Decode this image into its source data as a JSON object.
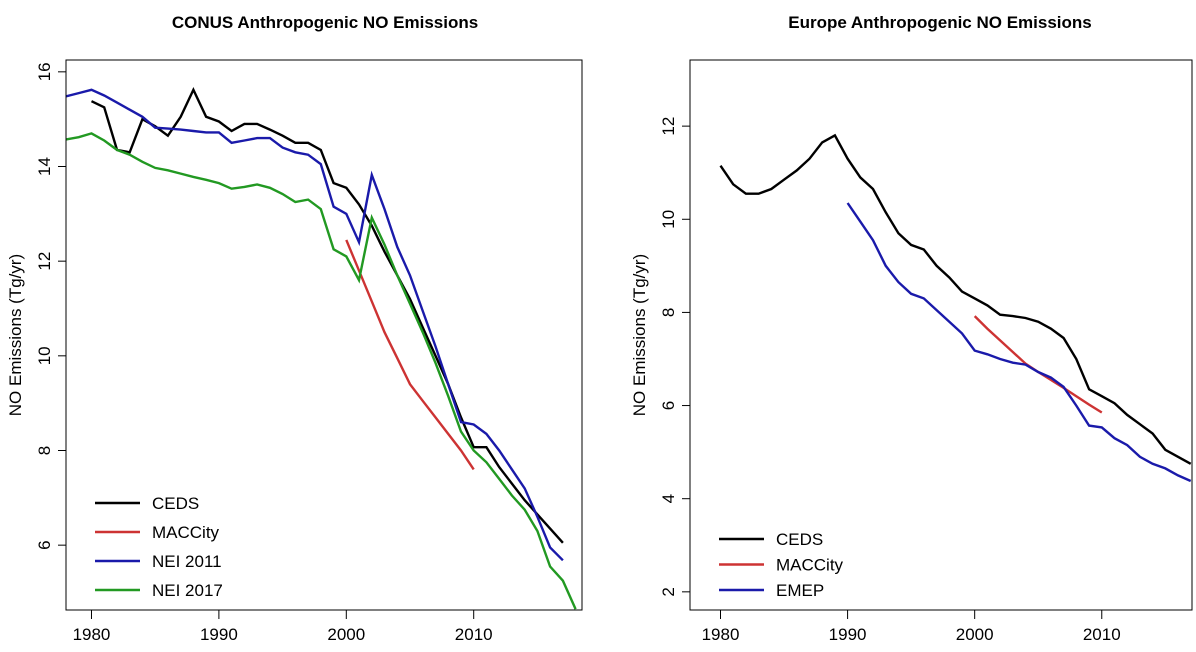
{
  "chart_data": [
    {
      "type": "line",
      "title": "CONUS Anthropogenic NO Emissions",
      "y_label": "NO Emissions (Tg/yr)",
      "xlim": [
        1978,
        2018.5
      ],
      "ylim": [
        4.63,
        16.25
      ],
      "xticks": [
        1980,
        1990,
        2000,
        2010
      ],
      "yticks": [
        6,
        8,
        10,
        12,
        14,
        16
      ],
      "legend": "bottom-left",
      "series": [
        {
          "name": "CEDS",
          "color": "#000000",
          "x": [
            1980,
            1981,
            1982,
            1983,
            1984,
            1985,
            1986,
            1987,
            1988,
            1989,
            1990,
            1991,
            1992,
            1993,
            1994,
            1995,
            1996,
            1997,
            1998,
            1999,
            2000,
            2001,
            2002,
            2003,
            2004,
            2005,
            2006,
            2007,
            2008,
            2009,
            2010,
            2011,
            2012,
            2013,
            2014,
            2015,
            2016,
            2017
          ],
          "values": [
            15.38,
            15.25,
            14.35,
            14.3,
            15.0,
            14.85,
            14.65,
            15.05,
            15.62,
            15.05,
            14.95,
            14.75,
            14.9,
            14.9,
            14.78,
            14.65,
            14.5,
            14.5,
            14.35,
            13.65,
            13.55,
            13.2,
            12.75,
            12.2,
            11.7,
            11.2,
            10.6,
            10.0,
            9.4,
            8.7,
            8.07,
            8.07,
            7.65,
            7.3,
            6.95,
            6.65,
            6.35,
            6.05
          ]
        },
        {
          "name": "MACCity",
          "color": "#cd3333",
          "x": [
            2000,
            2001,
            2002,
            2003,
            2004,
            2005,
            2006,
            2007,
            2008,
            2009,
            2010
          ],
          "values": [
            12.45,
            11.8,
            11.15,
            10.5,
            9.95,
            9.4,
            9.05,
            8.7,
            8.35,
            8.0,
            7.6
          ]
        },
        {
          "name": "NEI 2011",
          "color": "#1a1aaa",
          "x": [
            1978,
            1979,
            1980,
            1981,
            1982,
            1983,
            1984,
            1985,
            1986,
            1987,
            1988,
            1989,
            1990,
            1991,
            1992,
            1993,
            1994,
            1995,
            1996,
            1997,
            1998,
            1999,
            2000,
            2001,
            2002,
            2003,
            2004,
            2005,
            2006,
            2007,
            2008,
            2009,
            2010,
            2011,
            2012,
            2013,
            2014,
            2015,
            2016,
            2017
          ],
          "values": [
            15.48,
            15.55,
            15.62,
            15.5,
            15.35,
            15.2,
            15.05,
            14.82,
            14.8,
            14.78,
            14.75,
            14.72,
            14.72,
            14.5,
            14.55,
            14.6,
            14.6,
            14.4,
            14.3,
            14.25,
            14.05,
            13.15,
            13.0,
            12.4,
            13.82,
            13.1,
            12.3,
            11.7,
            10.95,
            10.2,
            9.4,
            8.6,
            8.55,
            8.35,
            8.0,
            7.6,
            7.2,
            6.6,
            5.95,
            5.68
          ]
        },
        {
          "name": "NEI 2017",
          "color": "#229922",
          "x": [
            1978,
            1979,
            1980,
            1981,
            1982,
            1983,
            1984,
            1985,
            1986,
            1987,
            1988,
            1989,
            1990,
            1991,
            1992,
            1993,
            1994,
            1995,
            1996,
            1997,
            1998,
            1999,
            2000,
            2001,
            2002,
            2003,
            2004,
            2005,
            2006,
            2007,
            2008,
            2009,
            2010,
            2011,
            2012,
            2013,
            2014,
            2015,
            2016,
            2017,
            2018
          ],
          "values": [
            14.57,
            14.62,
            14.7,
            14.55,
            14.35,
            14.25,
            14.1,
            13.97,
            13.92,
            13.85,
            13.78,
            13.72,
            13.65,
            13.53,
            13.57,
            13.62,
            13.55,
            13.42,
            13.25,
            13.3,
            13.1,
            12.25,
            12.1,
            11.6,
            12.92,
            12.35,
            11.7,
            11.1,
            10.5,
            9.85,
            9.15,
            8.4,
            8.0,
            7.75,
            7.4,
            7.05,
            6.75,
            6.3,
            5.55,
            5.25,
            4.65
          ]
        }
      ]
    },
    {
      "type": "line",
      "title": "Europe Anthropogenic NO Emissions",
      "y_label": "NO Emissions (Tg/yr)",
      "xlim": [
        1977.6,
        2017.1
      ],
      "ylim": [
        1.61,
        13.42
      ],
      "xticks": [
        1980,
        1990,
        2000,
        2010
      ],
      "yticks": [
        2,
        4,
        6,
        8,
        10,
        12
      ],
      "legend": "bottom-left",
      "series": [
        {
          "name": "CEDS",
          "color": "#000000",
          "x": [
            1980,
            1981,
            1982,
            1983,
            1984,
            1985,
            1986,
            1987,
            1988,
            1989,
            1990,
            1991,
            1992,
            1993,
            1994,
            1995,
            1996,
            1997,
            1998,
            1999,
            2000,
            2001,
            2002,
            2003,
            2004,
            2005,
            2006,
            2007,
            2008,
            2009,
            2010,
            2011,
            2012,
            2013,
            2014,
            2015,
            2016,
            2017
          ],
          "values": [
            11.15,
            10.75,
            10.55,
            10.55,
            10.65,
            10.85,
            11.05,
            11.3,
            11.65,
            11.8,
            11.3,
            10.9,
            10.65,
            10.15,
            9.7,
            9.45,
            9.35,
            9.0,
            8.75,
            8.45,
            8.3,
            8.15,
            7.95,
            7.92,
            7.88,
            7.8,
            7.65,
            7.45,
            7.0,
            6.35,
            6.2,
            6.05,
            5.8,
            5.6,
            5.4,
            5.05,
            4.9,
            4.75
          ]
        },
        {
          "name": "MACCity",
          "color": "#cd3333",
          "x": [
            2000,
            2001,
            2002,
            2003,
            2004,
            2005,
            2006,
            2007,
            2008,
            2009,
            2010
          ],
          "values": [
            7.92,
            7.65,
            7.4,
            7.15,
            6.9,
            6.72,
            6.55,
            6.38,
            6.2,
            6.02,
            5.85
          ]
        },
        {
          "name": "EMEP",
          "color": "#1a1aaa",
          "x": [
            1990,
            1991,
            1992,
            1993,
            1994,
            1995,
            1996,
            1997,
            1998,
            1999,
            2000,
            2001,
            2002,
            2003,
            2004,
            2005,
            2006,
            2007,
            2008,
            2009,
            2010,
            2011,
            2012,
            2013,
            2014,
            2015,
            2016,
            2017
          ],
          "values": [
            10.35,
            9.95,
            9.55,
            9.0,
            8.65,
            8.4,
            8.3,
            8.05,
            7.8,
            7.55,
            7.18,
            7.1,
            7.0,
            6.92,
            6.88,
            6.72,
            6.6,
            6.4,
            6.0,
            5.57,
            5.53,
            5.3,
            5.15,
            4.9,
            4.75,
            4.65,
            4.5,
            4.38
          ]
        }
      ]
    }
  ]
}
